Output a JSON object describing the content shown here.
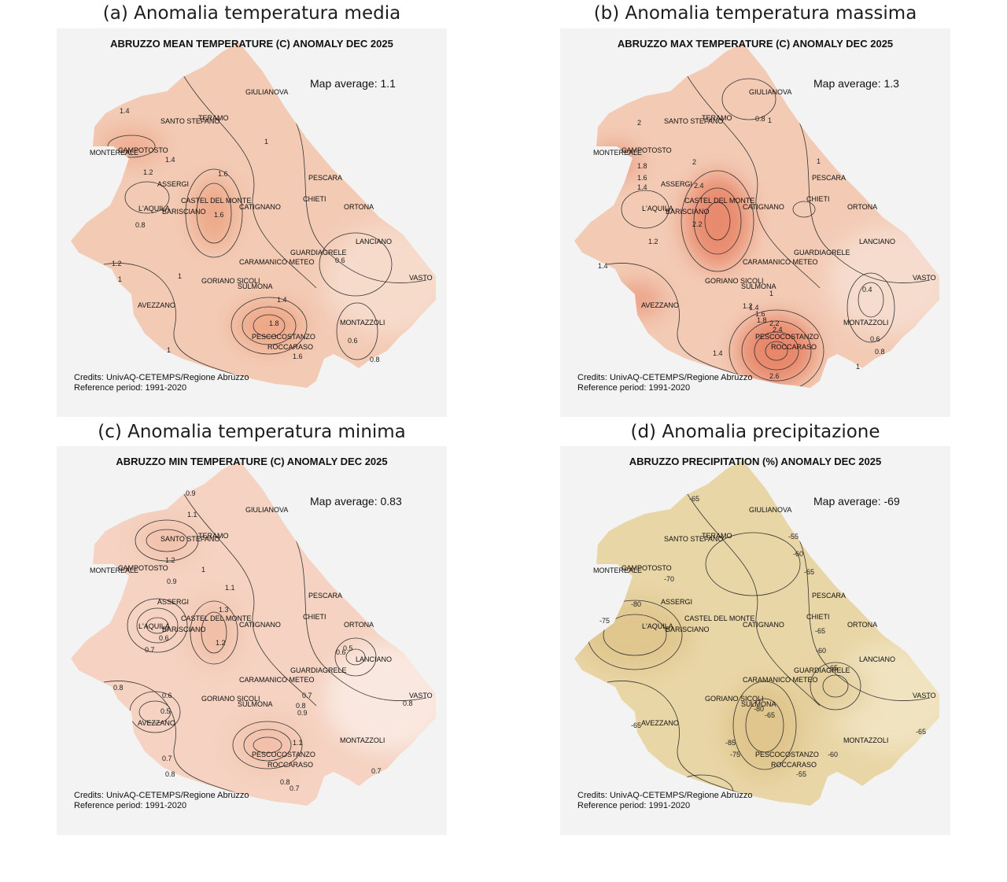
{
  "panels": [
    {
      "header": "(a) Anomalia temperatura media",
      "header_color": "#c6e0b4",
      "title": "ABRUZZO MEAN TEMPERATURE (C) ANOMALY DEC 2025",
      "average_label": "Map average: 1.1",
      "average_value": 1.1,
      "credits": "Credits: UnivAQ-CETEMPS/Regione Abruzzo",
      "reference": "Reference period: 1991-2020",
      "fill_base": "#f3cbb5",
      "fill_warm": "#eda585",
      "fill_light": "#f7dfd1",
      "contour_labels": [
        "1.4",
        "1.4",
        "1.2",
        "0.8",
        "1",
        "1.6",
        "1.6",
        "1",
        "0.6",
        "1.4",
        "1.8",
        "1.6",
        "0.6",
        "0.8",
        "1",
        "1",
        "1.2"
      ]
    },
    {
      "header": "(b) Anomalia temperatura massima",
      "header_color": "#f4b183",
      "title": "ABRUZZO MAX TEMPERATURE (C) ANOMALY DEC 2025",
      "average_label": "Map average: 1.3",
      "average_value": 1.3,
      "credits": "Credits: UnivAQ-CETEMPS/Regione Abruzzo",
      "reference": "Reference period: 1991-2020",
      "fill_base": "#f3cbb5",
      "fill_warm": "#e8876a",
      "fill_light": "#f7e0d4",
      "contour_labels": [
        "2",
        "0.8",
        "1.8",
        "1.6",
        "1.4",
        "2",
        "2.4",
        "2.2",
        "1.2",
        "1.4",
        "1",
        "1",
        "1.2",
        "1.4",
        "1.6",
        "1.8",
        "2.2",
        "2.4",
        "2.6",
        "1.4",
        "0.4",
        "0.6",
        "0.8",
        "1",
        "1"
      ]
    },
    {
      "header": "(c) Anomalia temperatura minima",
      "header_color": "#bdd7ee",
      "title": "ABRUZZO MIN TEMPERATURE (C) ANOMALY DEC 2025",
      "average_label": "Map average: 0.83",
      "average_value": 0.83,
      "credits": "Credits: UnivAQ-CETEMPS/Regione Abruzzo",
      "reference": "Reference period: 1991-2020",
      "fill_base": "#f5d2c1",
      "fill_warm": "#efb49a",
      "fill_light": "#fbeee7",
      "contour_labels": [
        "0.9",
        "1.1",
        "1.2",
        "0.9",
        "1",
        "1.1",
        "1.3",
        "1.2",
        "0.6",
        "0.7",
        "0.8",
        "0.6",
        "0.5",
        "0.7",
        "0.8",
        "0.7",
        "0.8",
        "0.9",
        "1.1",
        "0.8",
        "0.7",
        "0.5",
        "0.6",
        "0.8",
        "0.7"
      ]
    },
    {
      "header": "(d) Anomalia precipitazione",
      "header_color": "#8eaadb",
      "title": "ABRUZZO PRECIPITATION (%) ANOMALY DEC 2025",
      "average_label": "Map average: -69",
      "average_value": -69,
      "credits": "Credits: UnivAQ-CETEMPS/Regione Abruzzo",
      "reference": "Reference period: 1991-2020",
      "fill_base": "#e9d6a6",
      "fill_warm": "#dcc084",
      "fill_light": "#f2e6c6",
      "contour_labels": [
        "-65",
        "-55",
        "-60",
        "-65",
        "-70",
        "-80",
        "-75",
        "-65",
        "-60",
        "-65",
        "-65",
        "-80",
        "-85",
        "-75",
        "-60",
        "-55",
        "-65",
        "-65"
      ]
    }
  ],
  "towns": [
    "GIULIANOVA",
    "SANTO STEFANO",
    "TERAMO",
    "MONTEREALE",
    "CAMPOTOSTO",
    "PESCARA",
    "ASSERGI",
    "CASTEL DEL MONTE",
    "CHIETI",
    "L'AQUILA",
    "BARISCIANO",
    "CATIGNANO",
    "ORTONA",
    "LANCIANO",
    "GUARDIAGRELE",
    "CARAMANICO METEO",
    "VASTO",
    "GORIANO SICOLI",
    "SULMONA",
    "AVEZZANO",
    "MONTAZZOLI",
    "PESCOCOSTANZO",
    "ROCCARASO"
  ]
}
